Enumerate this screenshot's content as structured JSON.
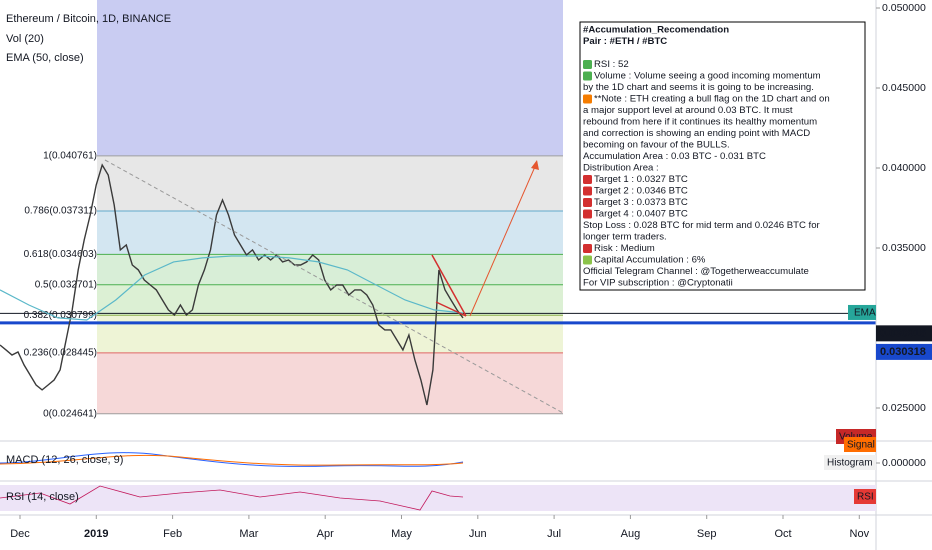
{
  "chart_data": {
    "type": "line",
    "series": [
      {
        "name": "Ethereum / Bitcoin, 1D, BINANCE",
        "color": "#3a3a3a",
        "values": [
          0.02894,
          0.02863,
          0.02831,
          0.0285,
          0.02769,
          0.02706,
          0.02644,
          0.02613,
          0.02644,
          0.02675,
          0.02738,
          0.02925,
          0.03113,
          0.03363,
          0.0355,
          0.03706,
          0.03894,
          0.04019,
          0.03956,
          0.03769,
          0.03488,
          0.03519,
          0.03394,
          0.03363,
          0.033,
          0.03269,
          0.03238,
          0.03175,
          0.03113,
          0.03081,
          0.03144,
          0.03081,
          0.03113,
          0.03269,
          0.03363,
          0.03488,
          0.03706,
          0.038,
          0.03706,
          0.03581,
          0.03519,
          0.03456,
          0.03488,
          0.03425,
          0.03456,
          0.03425,
          0.03456,
          0.03413,
          0.03425,
          0.03394,
          0.03394,
          0.03413,
          0.03456,
          0.03425,
          0.033,
          0.03238,
          0.03269,
          0.03269,
          0.03206,
          0.03238,
          0.03238,
          0.03206,
          0.03144,
          0.03019,
          0.02988,
          0.02988,
          0.02925,
          0.02863,
          0.02956,
          0.028,
          0.02675,
          0.02519,
          0.02738,
          0.03363,
          0.03238,
          0.03175,
          0.03113,
          0.03063
        ]
      },
      {
        "name": "EMA (50, close)",
        "color": "#5bb8c9",
        "values": [
          0.03238,
          0.03144,
          0.03063,
          0.0305,
          0.03175,
          0.03331,
          0.03413,
          0.03438,
          0.0345,
          0.0345,
          0.03438,
          0.03413,
          0.03363,
          0.03269,
          0.03175,
          0.03113,
          0.03094
        ]
      }
    ],
    "volume_title": "Vol (20)",
    "ylim": [
      0.023,
      0.0505
    ],
    "yticks": [
      {
        "value": 0.025,
        "label": "0.025000"
      },
      {
        "value": 0.035,
        "label": "0.035000"
      },
      {
        "value": 0.04,
        "label": "0.040000"
      },
      {
        "value": 0.045,
        "label": "0.045000"
      },
      {
        "value": 0.05,
        "label": "0.050000"
      }
    ],
    "x_labels": [
      "Dec",
      "2019",
      "Feb",
      "Mar",
      "Apr",
      "May",
      "Jun",
      "Jul",
      "Aug",
      "Sep",
      "Oct",
      "Nov"
    ],
    "fib_levels": [
      {
        "label": "1(0.040761)",
        "value": 0.040761,
        "color": "#9e9e9e",
        "fill": "#e7e7e7"
      },
      {
        "label": "0.786(0.037311)",
        "value": 0.037311,
        "color": "#62a9cc",
        "fill": "#d3e6f1"
      },
      {
        "label": "0.618(0.034603)",
        "value": 0.034603,
        "color": "#4caf50",
        "fill": "#d8eed7"
      },
      {
        "label": "0.5(0.032701)",
        "value": 0.032701,
        "color": "#4caf50",
        "fill": "#dcf0d4"
      },
      {
        "label": "0.382(0.030799)",
        "value": 0.030799,
        "color": "#8bb04a",
        "fill": "#eef4d6"
      },
      {
        "label": "0.236(0.028445)",
        "value": 0.028445,
        "color": "#e06666",
        "fill": "#f6d8d8"
      },
      {
        "label": "0(0.024641)",
        "value": 0.024641,
        "color": "#9e9e9e"
      }
    ],
    "price_labels": [
      {
        "value": 0.030916,
        "label": "0.030916",
        "color": "#131722"
      },
      {
        "value": 0.030318,
        "label": "0.030318",
        "color": "#1848cc"
      }
    ],
    "ema_tag": "EMA",
    "volume_tag": "Volume",
    "macd_title": "MACD (12, 26, close, 9)",
    "signal_tag": "Signal",
    "histogram_tag": "Histogram",
    "macd_zero": {
      "value": 0,
      "label": "0.000000"
    },
    "rsi_title": "RSI (14, close)",
    "rsi_tag": "RSI"
  },
  "note": {
    "lines": [
      "#Accumulation_Recomendation",
      "Pair : #ETH / #BTC",
      "RSI : 52",
      "Volume : Volume seeing a good incoming momentum",
      "by the 1D chart and seems it is going to be increasing.",
      "**Note : ETH creating a bull flag on the 1D chart and on",
      "a major support level at around 0.03 BTC. It must",
      "rebound from here if it continues its healthy momentum",
      "and correction is showing an ending point with MACD",
      "becoming on favour of the BULLS.",
      "Accumulation Area : 0.03 BTC - 0.031 BTC",
      "Distribution Area :",
      "Target 1 : 0.0327 BTC",
      "Target 2 : 0.0346 BTC",
      "Target 3 : 0.0373 BTC",
      "Target 4 : 0.0407 BTC",
      "Stop Loss : 0.028 BTC for mid term and 0.0246 BTC for",
      "longer term traders.",
      "Risk : Medium",
      "Capital Accumulation : 6%",
      "Official Telegram Channel : @Togetherweaccumulate",
      "For VIP subscription : @Cryptonatii"
    ]
  }
}
